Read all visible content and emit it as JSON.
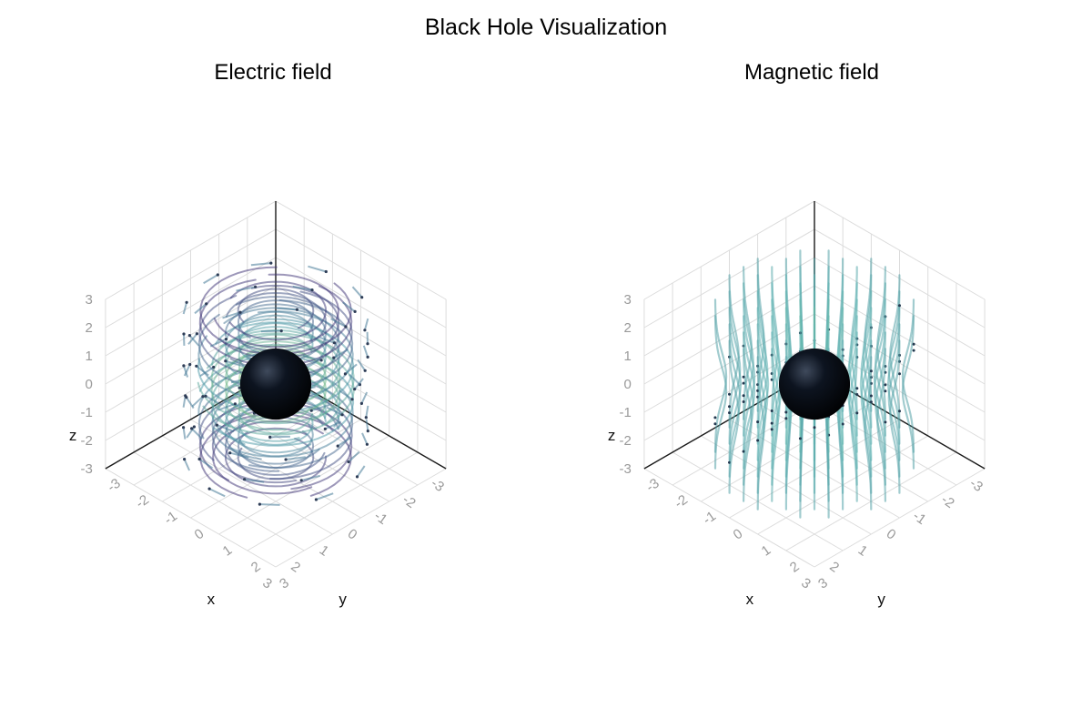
{
  "figure": {
    "title": "Black Hole Visualization"
  },
  "chart_data": [
    {
      "type": "3d-streamplot",
      "title": "Electric field",
      "xlabel": "x",
      "ylabel": "y",
      "zlabel": "z",
      "xlim": [
        -3,
        3
      ],
      "ylim": [
        -3,
        3
      ],
      "zlim": [
        -3,
        3
      ],
      "x_ticks": [
        "-3",
        "-2",
        "-1",
        "0",
        "1",
        "2",
        "3"
      ],
      "y_ticks": [
        "-3",
        "-2",
        "-1",
        "0",
        "1",
        "2",
        "3"
      ],
      "z_ticks": [
        "-3",
        "-2",
        "-1",
        "0",
        "1",
        "2",
        "3"
      ],
      "field_pattern": "azimuthal",
      "horizon_radius": 0.7,
      "grid": true,
      "colors": {
        "low": "#3b2f73",
        "mid": "#4a9aa6",
        "high": "#8fd46a",
        "horizon": "#000000"
      }
    },
    {
      "type": "3d-streamplot",
      "title": "Magnetic field",
      "xlabel": "x",
      "ylabel": "y",
      "zlabel": "z",
      "xlim": [
        -3,
        3
      ],
      "ylim": [
        -3,
        3
      ],
      "zlim": [
        -3,
        3
      ],
      "x_ticks": [
        "-3",
        "-2",
        "-1",
        "0",
        "1",
        "2",
        "3"
      ],
      "y_ticks": [
        "-3",
        "-2",
        "-1",
        "0",
        "1",
        "2",
        "3"
      ],
      "z_ticks": [
        "-3",
        "-2",
        "-1",
        "0",
        "1",
        "2",
        "3"
      ],
      "field_pattern": "vertical",
      "horizon_radius": 0.7,
      "grid": true,
      "colors": {
        "low": "#2f5c7a",
        "mid": "#5fb4b4",
        "high": "#8fd46a",
        "horizon": "#000000"
      }
    }
  ]
}
